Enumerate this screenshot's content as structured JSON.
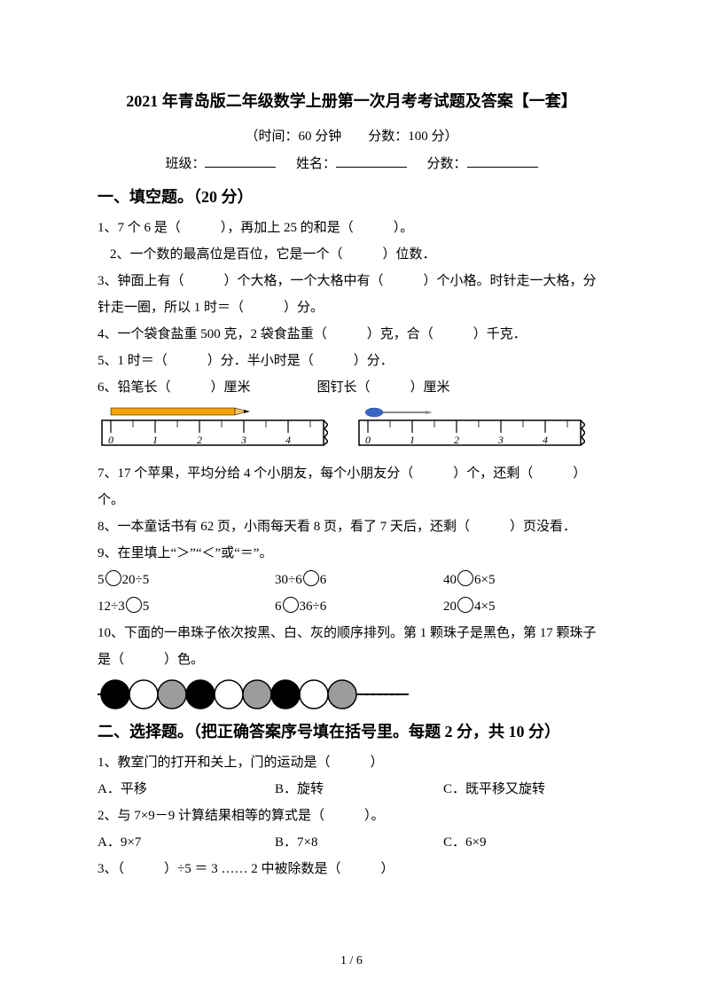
{
  "title": "2021 年青岛版二年级数学上册第一次月考考试题及答案【一套】",
  "subtitle_prefix": "（时间：",
  "time": "60 分钟",
  "subtitle_mid": "　　分数：",
  "score_total": "100 分）",
  "info_class": "班级：",
  "info_name": "姓名：",
  "info_score": "分数：",
  "section1": "一、填空题。（20 分）",
  "q1": "1、7 个 6 是（　　　），再加上 25 的和是（　　　）。",
  "q2": "2、一个数的最高位是百位，它是一个（　　　）位数．",
  "q3": "3、钟面上有（　　　）个大格，一个大格中有（　　　）个小格。时针走一大格，分针走一圈，所以 1 时＝（　　　）分。",
  "q4": "4、一个袋食盐重 500 克，2 袋食盐重（　　　）克，合（　　　）千克．",
  "q5": "5、1 时＝（　　　）分．半小时是（　　　）分．",
  "q6": "6、铅笔长（　　　）厘米　　　　　图钉长（　　　）厘米",
  "ruler1": {
    "ticks": [
      "0",
      "1",
      "2",
      "3",
      "4"
    ],
    "pencil_color": "#f5a500",
    "tip_color": "#000000",
    "ruler_fill": "#ffffff",
    "ruler_stroke": "#000000"
  },
  "ruler2": {
    "ticks": [
      "0",
      "1",
      "2",
      "3",
      "4"
    ],
    "pin_color": "#3a66c4",
    "ruler_fill": "#ffffff",
    "ruler_stroke": "#000000"
  },
  "q7": "7、17 个苹果，平均分给 4 个小朋友，每个小朋友分（　　　）个，还剩（　　　）个。",
  "q8": "8、一本童话书有 62 页，小雨每天看 8 页，看了 7 天后，还剩（　　　）页没看．",
  "q9": "9、在里填上“＞”“＜”或“＝”。",
  "q9row1": [
    "5〇20÷5",
    "30÷6〇6",
    "40〇6×5"
  ],
  "q9row2": [
    "12÷3〇5",
    "6〇36÷6",
    "20〇4×5"
  ],
  "q10": "10、下面的一串珠子依次按黑、白、灰的顺序排列。第 1 颗珠子是黑色，第 17 颗珠子是（　　　）色。",
  "beads": {
    "pattern": [
      "black",
      "white",
      "gray",
      "black",
      "white",
      "gray",
      "black",
      "white",
      "gray"
    ],
    "colors": {
      "black": "#000000",
      "white": "#ffffff",
      "gray": "#9c9c9c"
    },
    "stroke": "#000000",
    "radius": 16
  },
  "section2": "二、选择题。（把正确答案序号填在括号里。每题 2 分，共 10 分）",
  "s2q1": "1、教室门的打开和关上，门的运动是（　　　）",
  "s2q1opts": [
    "A．平移",
    "B．旋转",
    "C．既平移又旋转"
  ],
  "s2q2": "2、与 7×9－9 计算结果相等的算式是（　　　）。",
  "s2q2opts": [
    "A．9×7",
    "B．7×8",
    "C．6×9"
  ],
  "s2q3": "3、（　　　）÷5 ＝ 3 …… 2 中被除数是（　　　）",
  "pagenum": "1 / 6"
}
